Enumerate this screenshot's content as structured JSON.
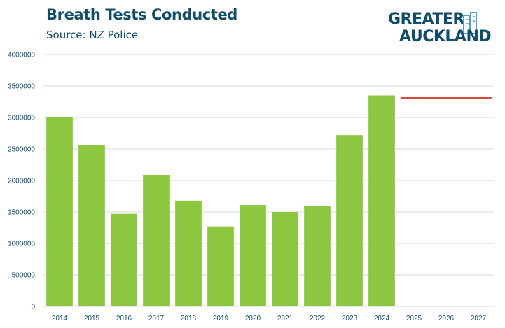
{
  "header": {
    "title": "Breath Tests Conducted",
    "subtitle": "Source: NZ Police"
  },
  "logo": {
    "line1": "GREATER",
    "line2": "AUCKLAND",
    "icon": "city-buildings-icon",
    "color": "#0f4d69",
    "accent": "#4aa3df"
  },
  "chart_data": {
    "type": "bar",
    "categories": [
      "2014",
      "2015",
      "2016",
      "2017",
      "2018",
      "2019",
      "2020",
      "2021",
      "2022",
      "2023",
      "2024",
      "2025",
      "2026",
      "2027"
    ],
    "values": [
      3010000,
      2560000,
      1470000,
      2090000,
      1680000,
      1270000,
      1610000,
      1500000,
      1590000,
      2720000,
      3350000,
      null,
      null,
      null
    ],
    "target_line": {
      "value": 3310000,
      "from": "2025",
      "to": "2027",
      "color": "#d94a3a"
    },
    "ylim": [
      0,
      4000000
    ],
    "yticks": [
      "0",
      "500000",
      "1000000",
      "1500000",
      "2000000",
      "2500000",
      "3000000",
      "3500000",
      "4000000"
    ],
    "bar_color": "#8dc63f",
    "grid": true,
    "xlabel": "",
    "ylabel": ""
  }
}
